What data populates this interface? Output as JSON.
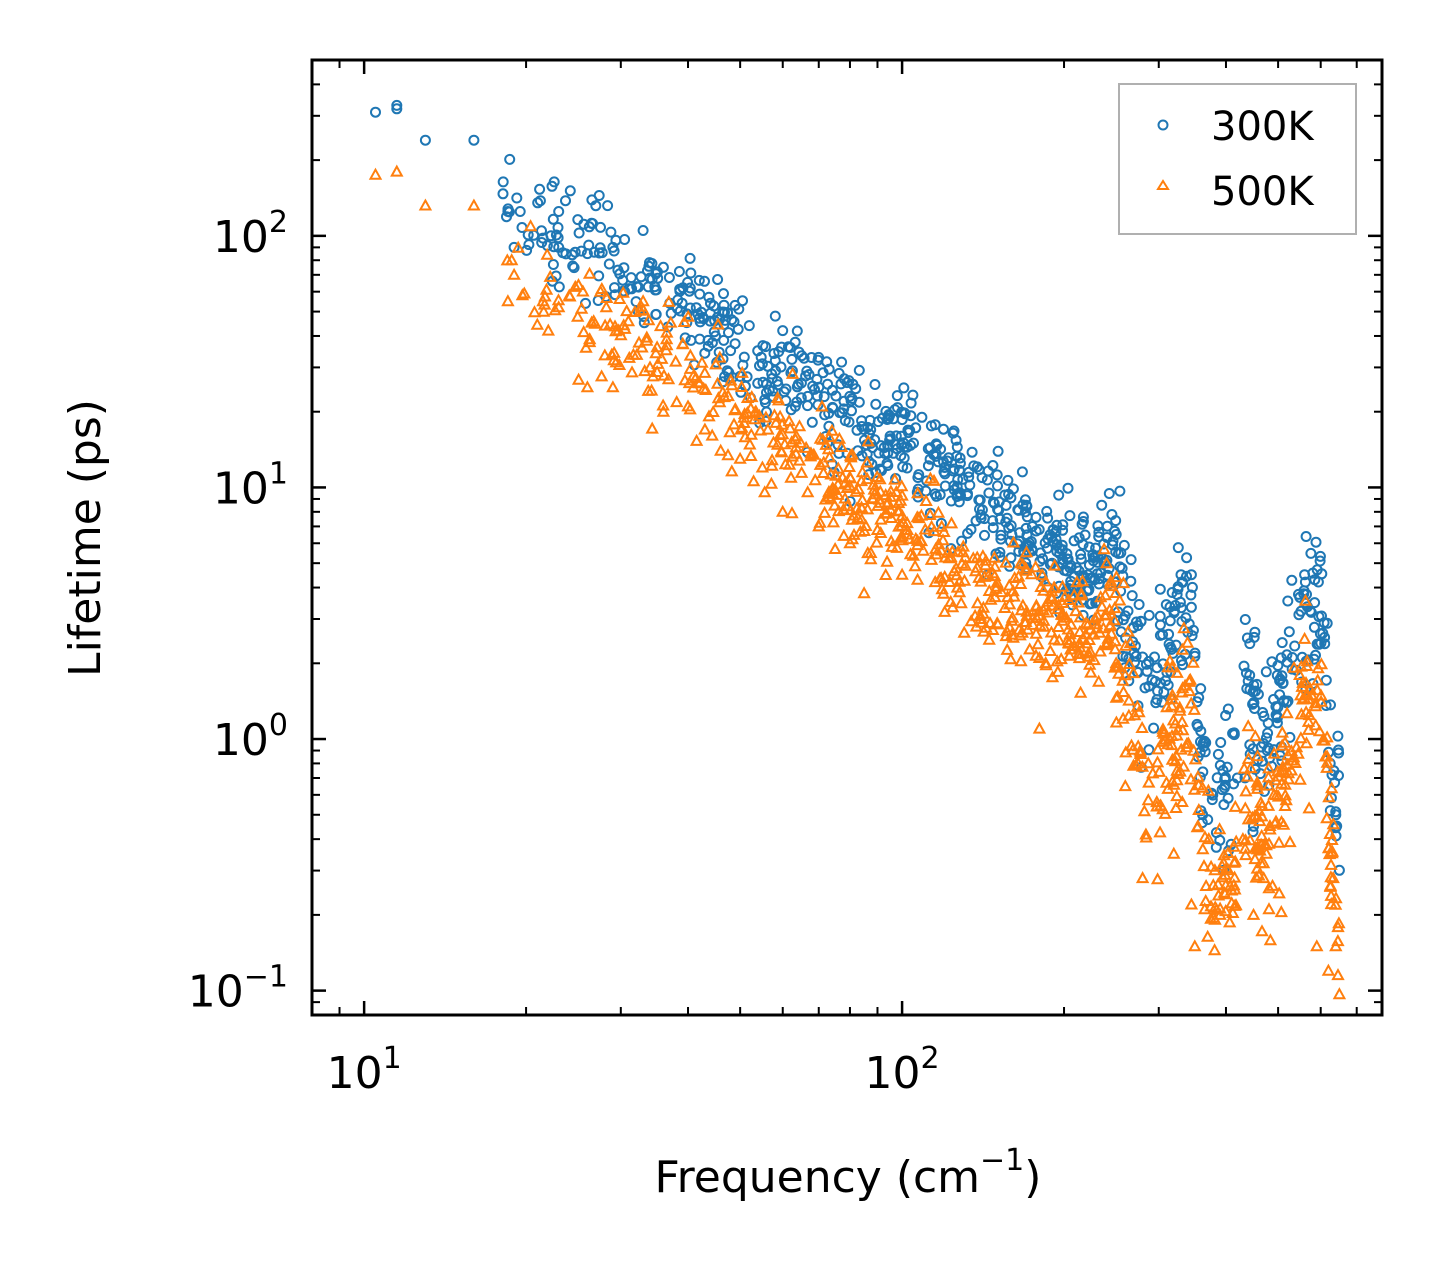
{
  "chart_data": {
    "type": "scatter",
    "title": "",
    "xlabel": {
      "base": "Frequency (cm",
      "sup": "−1",
      "tail": ")"
    },
    "ylabel": "Lifetime (ps)",
    "xscale": "log",
    "yscale": "log",
    "xlim": [
      8,
      780
    ],
    "ylim": [
      0.08,
      500
    ],
    "xticks": [
      {
        "base": "10",
        "exp": "1",
        "value": 10
      },
      {
        "base": "10",
        "exp": "2",
        "value": 100
      }
    ],
    "yticks": [
      {
        "base": "10",
        "exp": "−1",
        "value": 0.1
      },
      {
        "base": "10",
        "exp": "0",
        "value": 1
      },
      {
        "base": "10",
        "exp": "1",
        "value": 10
      },
      {
        "base": "10",
        "exp": "2",
        "value": 100
      }
    ],
    "legend": {
      "placement": "top-right"
    },
    "series": [
      {
        "name": "300K",
        "marker": "circle",
        "color": "#1f77b4",
        "trend": [
          [
            10.5,
            310
          ],
          [
            11.5,
            320
          ],
          [
            13,
            240
          ],
          [
            16,
            240
          ],
          [
            19,
            125
          ],
          [
            23,
            95
          ],
          [
            28,
            85
          ],
          [
            34,
            65
          ],
          [
            40,
            50
          ],
          [
            50,
            35
          ],
          [
            60,
            27
          ],
          [
            75,
            20
          ],
          [
            90,
            16
          ],
          [
            110,
            13
          ],
          [
            140,
            9
          ],
          [
            180,
            6
          ],
          [
            220,
            4.5
          ],
          [
            245,
            6
          ],
          [
            260,
            3.5
          ],
          [
            290,
            1.6
          ],
          [
            320,
            3.0
          ],
          [
            345,
            3.8
          ],
          [
            360,
            0.9
          ],
          [
            380,
            0.65
          ],
          [
            415,
            0.65
          ],
          [
            440,
            1.5
          ],
          [
            470,
            0.9
          ],
          [
            500,
            1.5
          ],
          [
            560,
            3.2
          ],
          [
            600,
            3.5
          ],
          [
            640,
            0.55
          ]
        ],
        "points": [
          [
            10.5,
            310
          ],
          [
            11.5,
            330
          ],
          [
            11.5,
            320
          ],
          [
            13,
            240
          ],
          [
            16,
            240
          ],
          [
            18.5,
            125
          ],
          [
            19,
            90
          ],
          [
            19.5,
            125
          ],
          [
            21.5,
            98
          ],
          [
            23,
            125
          ],
          [
            23,
            90
          ],
          [
            26,
            85
          ],
          [
            27.5,
            108
          ],
          [
            29,
            90
          ],
          [
            30.5,
            60
          ],
          [
            33,
            105
          ],
          [
            34,
            68
          ],
          [
            36,
            75
          ],
          [
            37,
            54
          ],
          [
            39,
            54
          ],
          [
            42,
            47
          ],
          [
            45,
            40
          ],
          [
            48,
            35
          ],
          [
            52,
            44
          ],
          [
            55,
            31
          ],
          [
            60,
            42
          ],
          [
            62,
            36
          ],
          [
            65,
            26
          ],
          [
            70,
            25
          ],
          [
            78,
            22
          ],
          [
            85,
            17
          ],
          [
            95,
            16
          ],
          [
            105,
            15
          ],
          [
            120,
            12
          ],
          [
            133,
            11
          ],
          [
            145,
            9.5
          ],
          [
            160,
            6.5
          ],
          [
            190,
            5
          ],
          [
            205,
            4.8
          ],
          [
            235,
            8.5
          ],
          [
            250,
            6.5
          ],
          [
            255,
            5.5
          ],
          [
            270,
            2.2
          ],
          [
            305,
            2.6
          ],
          [
            330,
            4.5
          ],
          [
            345,
            4.5
          ],
          [
            355,
            0.85
          ],
          [
            395,
            0.75
          ],
          [
            420,
            0.7
          ],
          [
            440,
            1.7
          ],
          [
            450,
            0.45
          ],
          [
            560,
            4.5
          ],
          [
            585,
            4.3
          ],
          [
            625,
            0.8
          ],
          [
            640,
            0.5
          ]
        ]
      },
      {
        "name": "500K",
        "marker": "triangle",
        "color": "#ff7f0e",
        "trend": [
          [
            10.5,
            180
          ],
          [
            11.5,
            185
          ],
          [
            13,
            135
          ],
          [
            16,
            135
          ],
          [
            19,
            65
          ],
          [
            23,
            55
          ],
          [
            28,
            45
          ],
          [
            34,
            35
          ],
          [
            40,
            28
          ],
          [
            50,
            20
          ],
          [
            60,
            15
          ],
          [
            75,
            11
          ],
          [
            90,
            8
          ],
          [
            110,
            6.5
          ],
          [
            140,
            4
          ],
          [
            180,
            3
          ],
          [
            220,
            2.5
          ],
          [
            245,
            3.5
          ],
          [
            260,
            1.8
          ],
          [
            290,
            0.6
          ],
          [
            320,
            1.0
          ],
          [
            345,
            1.5
          ],
          [
            360,
            0.28
          ],
          [
            380,
            0.25
          ],
          [
            415,
            0.3
          ],
          [
            440,
            0.7
          ],
          [
            470,
            0.3
          ],
          [
            500,
            0.5
          ],
          [
            560,
            1.5
          ],
          [
            600,
            1.8
          ],
          [
            640,
            0.18
          ]
        ],
        "points": [
          [
            10.5,
            175
          ],
          [
            11.5,
            180
          ],
          [
            13,
            132
          ],
          [
            16,
            132
          ],
          [
            18.5,
            55
          ],
          [
            19,
            70
          ],
          [
            21.5,
            55
          ],
          [
            22,
            42
          ],
          [
            23,
            52
          ],
          [
            26,
            25
          ],
          [
            27.5,
            60
          ],
          [
            29,
            25
          ],
          [
            33,
            55
          ],
          [
            34,
            30
          ],
          [
            36,
            20
          ],
          [
            40,
            21
          ],
          [
            43,
            17
          ],
          [
            46,
            14
          ],
          [
            50,
            13
          ],
          [
            55,
            12
          ],
          [
            60,
            8
          ],
          [
            70,
            7
          ],
          [
            80,
            6
          ],
          [
            85,
            3.8
          ],
          [
            100,
            4.5
          ],
          [
            120,
            3.2
          ],
          [
            140,
            3
          ],
          [
            160,
            2.6
          ],
          [
            180,
            2.1
          ],
          [
            180,
            1.1
          ],
          [
            220,
            2.4
          ],
          [
            240,
            5
          ],
          [
            250,
            2
          ],
          [
            260,
            0.65
          ],
          [
            280,
            0.28
          ],
          [
            320,
            0.35
          ],
          [
            345,
            0.22
          ],
          [
            350,
            0.15
          ],
          [
            390,
            0.2
          ],
          [
            410,
            0.25
          ],
          [
            430,
            0.4
          ],
          [
            450,
            0.2
          ],
          [
            470,
            0.28
          ],
          [
            560,
            2.5
          ],
          [
            590,
            0.15
          ],
          [
            620,
            0.12
          ],
          [
            640,
            0.15
          ]
        ]
      }
    ]
  }
}
